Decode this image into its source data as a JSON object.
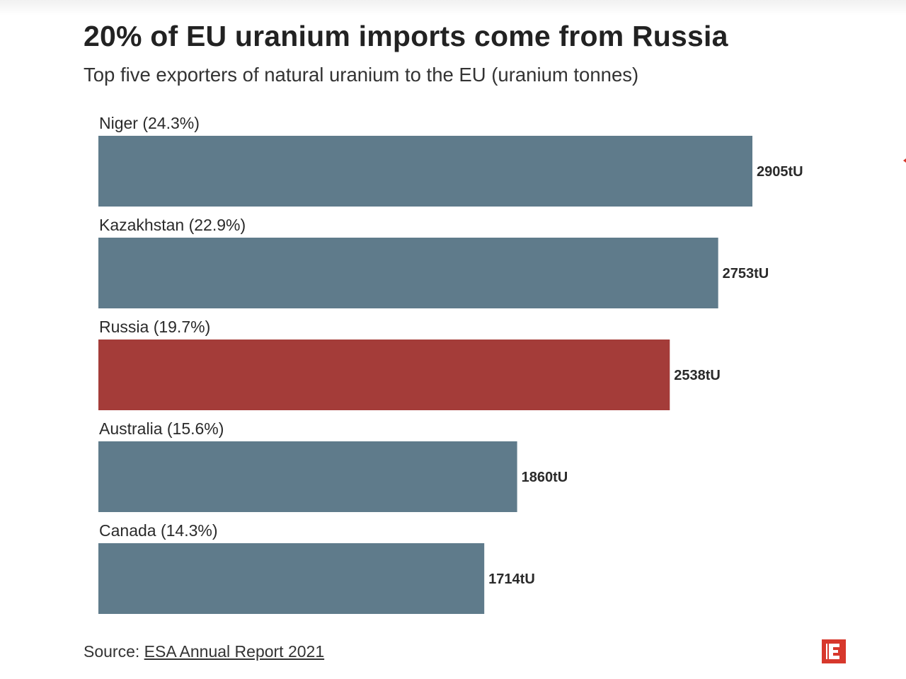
{
  "header": {
    "title": "20% of EU uranium imports come from Russia",
    "subtitle": "Top five exporters of natural uranium to the EU (uranium tonnes)"
  },
  "source": {
    "prefix": "Source: ",
    "link_text": "ESA Annual Report 2021"
  },
  "logo": {
    "icon": "publisher-e-logo-icon",
    "color": "#d7382c"
  },
  "colors": {
    "default_bar": "#5f7b8b",
    "highlight_bar": "#a43c39",
    "text": "#222222"
  },
  "chart_data": {
    "type": "bar",
    "orientation": "horizontal",
    "title": "20% of EU uranium imports come from Russia",
    "subtitle": "Top five exporters of natural uranium to the EU (uranium tonnes)",
    "categories": [
      "Niger (24.3%)",
      "Kazakhstan (22.9%)",
      "Russia (19.7%)",
      "Australia (15.6%)",
      "Canada (14.3%)"
    ],
    "values": [
      2905,
      2753,
      2538,
      1860,
      1714
    ],
    "value_labels": [
      "2905tU",
      "2753tU",
      "2538tU",
      "1860tU",
      "1714tU"
    ],
    "highlight": "Russia (19.7%)",
    "xlim": [
      0,
      2905
    ],
    "grid": false,
    "legend": "none"
  }
}
